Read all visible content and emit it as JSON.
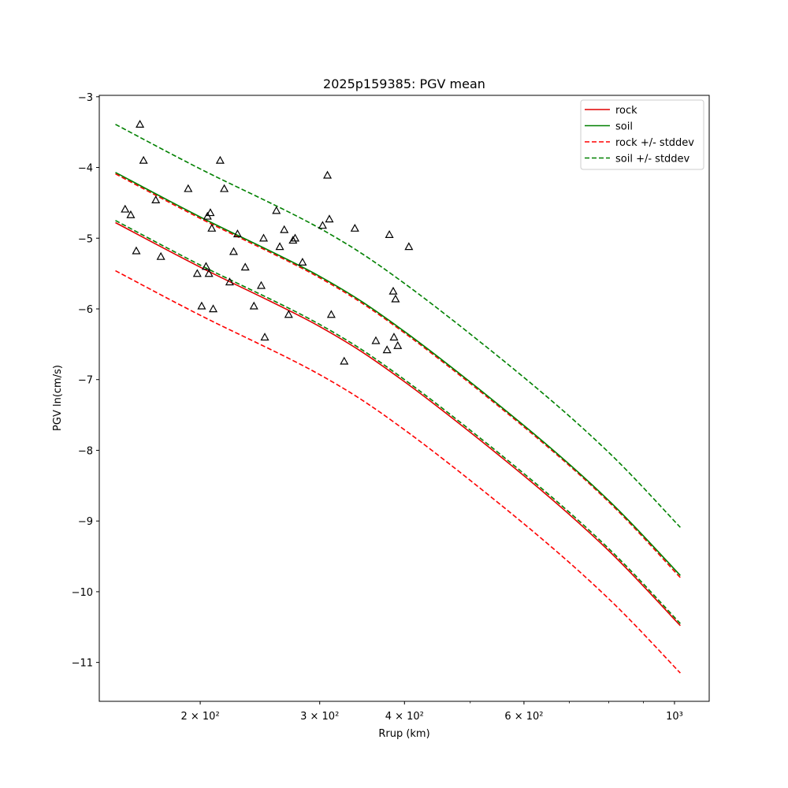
{
  "chart_data": {
    "type": "scatter",
    "title": "2025p159385: PGV mean",
    "xlabel": "Rrup (km)",
    "ylabel": "PGV ln(cm/s)",
    "xscale": "log",
    "xlim": [
      142,
      1125
    ],
    "ylim": [
      -11.55,
      -2.98
    ],
    "xticks": [
      {
        "value": 200,
        "label": "2 × 10²"
      },
      {
        "value": 300,
        "label": "3 × 10²"
      },
      {
        "value": 400,
        "label": "4 × 10²"
      },
      {
        "value": 600,
        "label": "6 × 10²"
      },
      {
        "value": 1000,
        "label": "10³"
      }
    ],
    "xminor_ticks": [
      500,
      700,
      800,
      900
    ],
    "yticks": [
      -3,
      -4,
      -5,
      -6,
      -7,
      -8,
      -9,
      -10,
      -11
    ],
    "ytick_labels": [
      "−3",
      "−4",
      "−5",
      "−6",
      "−7",
      "−8",
      "−9",
      "−10",
      "−11"
    ],
    "legend_position": "upper right",
    "legend": [
      {
        "label": "rock",
        "color": "#e00000",
        "style": "solid"
      },
      {
        "label": "soil",
        "color": "#008000",
        "style": "solid"
      },
      {
        "label": "rock +/- stddev",
        "color": "#ff0000",
        "style": "dashed"
      },
      {
        "label": "soil +/- stddev",
        "color": "#008000",
        "style": "dashed"
      }
    ],
    "lines": [
      {
        "name": "rock",
        "color": "#e00000",
        "style": "solid",
        "x": [
          150,
          200,
          300,
          400,
          600,
          800,
          1020
        ],
        "y": [
          -4.78,
          -5.41,
          -6.25,
          -7.03,
          -8.36,
          -9.42,
          -10.48
        ]
      },
      {
        "name": "rock +stddev",
        "color": "#ff0000",
        "style": "dashed",
        "x": [
          150,
          200,
          300,
          400,
          600,
          800,
          1020
        ],
        "y": [
          -4.09,
          -4.72,
          -5.56,
          -6.34,
          -7.67,
          -8.73,
          -9.8
        ]
      },
      {
        "name": "rock -stddev",
        "color": "#ff0000",
        "style": "dashed",
        "x": [
          150,
          200,
          300,
          400,
          600,
          800,
          1020
        ],
        "y": [
          -5.46,
          -6.09,
          -6.93,
          -7.71,
          -9.04,
          -10.1,
          -11.15
        ]
      },
      {
        "name": "soil",
        "color": "#008000",
        "style": "solid",
        "x": [
          150,
          200,
          300,
          400,
          600,
          800,
          1020
        ],
        "y": [
          -4.07,
          -4.7,
          -5.54,
          -6.32,
          -7.65,
          -8.71,
          -9.77
        ]
      },
      {
        "name": "soil +stddev",
        "color": "#008000",
        "style": "dashed",
        "x": [
          150,
          200,
          300,
          400,
          600,
          800,
          1020
        ],
        "y": [
          -3.39,
          -4.02,
          -4.86,
          -5.64,
          -6.97,
          -8.03,
          -9.09
        ]
      },
      {
        "name": "soil -stddev",
        "color": "#008000",
        "style": "dashed",
        "x": [
          150,
          200,
          300,
          400,
          600,
          800,
          1020
        ],
        "y": [
          -4.75,
          -5.38,
          -6.22,
          -7.0,
          -8.33,
          -9.39,
          -10.45
        ]
      }
    ],
    "points": {
      "marker": "triangle-open",
      "color": "#000000",
      "x": [
        163,
        155,
        165,
        158,
        161,
        172,
        175,
        198,
        201,
        204,
        205,
        206,
        207,
        208,
        209,
        192,
        214,
        217,
        221,
        224,
        227,
        233,
        240,
        246,
        248,
        249,
        259,
        262,
        266,
        270,
        274,
        276,
        283,
        303,
        308,
        310,
        312,
        326,
        338,
        363,
        377,
        380,
        385,
        386,
        388,
        391,
        406
      ],
      "y": [
        -3.39,
        -4.59,
        -3.9,
        -4.67,
        -5.18,
        -4.46,
        -5.26,
        -5.5,
        -5.96,
        -5.4,
        -4.69,
        -5.5,
        -4.64,
        -4.86,
        -6.0,
        -4.3,
        -3.9,
        -4.3,
        -5.62,
        -5.19,
        -4.94,
        -5.41,
        -5.96,
        -5.67,
        -5.0,
        -6.4,
        -4.61,
        -5.12,
        -4.88,
        -6.08,
        -5.03,
        -5.0,
        -5.34,
        -4.82,
        -4.11,
        -4.73,
        -6.08,
        -6.74,
        -4.86,
        -6.45,
        -6.58,
        -4.95,
        -5.75,
        -6.4,
        -5.86,
        -6.52,
        -5.12
      ]
    }
  }
}
